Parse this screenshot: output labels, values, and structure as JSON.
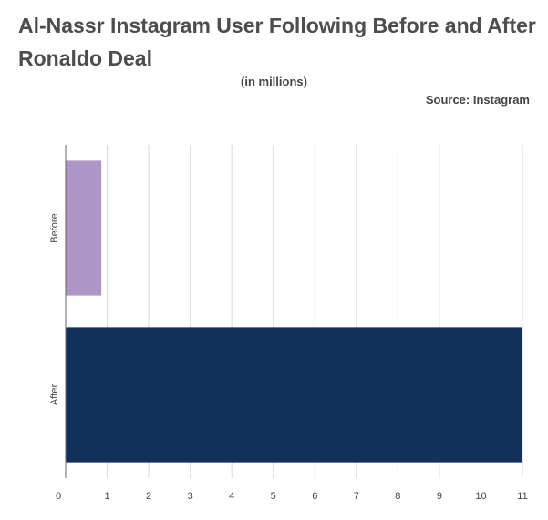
{
  "header": {
    "title": "Al-Nassr Instagram User Following Before and After Ronaldo Deal",
    "subtitle": "(in millions)",
    "source": "Source: Instagram"
  },
  "chart_data": {
    "type": "bar",
    "orientation": "horizontal",
    "categories": [
      "Before",
      "After"
    ],
    "values": [
      0.86,
      11
    ],
    "colors": [
      "#ae96c7",
      "#12315a"
    ],
    "xlim": [
      0,
      11
    ],
    "xticks": [
      0,
      1,
      2,
      3,
      4,
      5,
      6,
      7,
      8,
      9,
      10,
      11
    ],
    "grid": true,
    "legend": "none"
  }
}
